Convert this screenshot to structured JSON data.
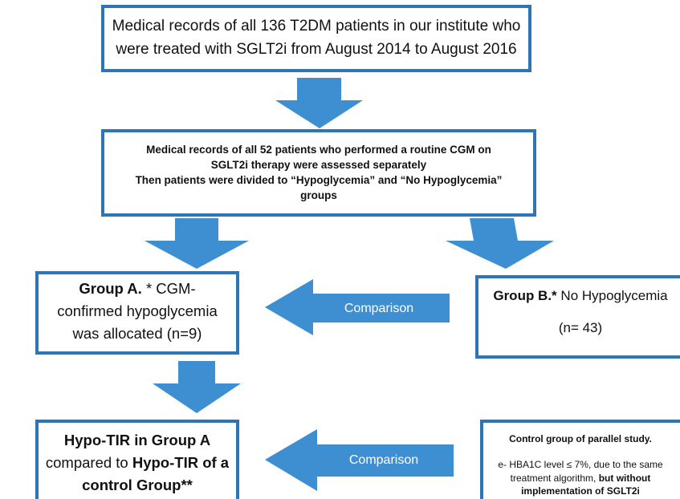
{
  "nodes": [
    {
      "lines": [
        [
          {
            "text": "Medical records of all 136 T2DM patients in our institute who",
            "bold": false
          }
        ],
        [
          {
            "text": "were treated with SGLT2i from August 2014 to August 2016",
            "bold": false
          }
        ]
      ]
    },
    {
      "lines": [
        [
          {
            "text": "Medical records of all 52 patients who performed a routine CGM on",
            "bold": true
          }
        ],
        [
          {
            "text": "SGLT2i therapy were assessed separately",
            "bold": true
          }
        ],
        [
          {
            "text": "Then patients were divided to “Hypoglycemia” and “No Hypoglycemia”",
            "bold": true
          }
        ],
        [
          {
            "text": "groups",
            "bold": true
          }
        ]
      ]
    },
    {
      "lines": [
        [
          {
            "text": "Group A.",
            "bold": true
          },
          {
            "text": " * CGM-",
            "bold": false
          }
        ],
        [
          {
            "text": "confirmed hypoglycemia",
            "bold": false
          }
        ],
        [
          {
            "text": "was allocated (n=9)",
            "bold": false
          }
        ]
      ]
    },
    {
      "lines": [
        [
          {
            "text": "Group B.*",
            "bold": true
          },
          {
            "text": " No Hypoglycemia",
            "bold": false
          }
        ],
        [
          {
            "text": "(n= 43)",
            "bold": false
          }
        ]
      ]
    },
    {
      "lines": [
        [
          {
            "text": "Hypo-TIR in Group A",
            "bold": true
          }
        ],
        [
          {
            "text": "compared to ",
            "bold": false
          },
          {
            "text": "Hypo-TIR of a",
            "bold": true
          }
        ],
        [
          {
            "text": "control Group**",
            "bold": true
          }
        ]
      ]
    },
    {
      "lines": [
        [
          {
            "text": "Control group of parallel study.",
            "bold": true
          }
        ],
        [
          {
            "text": "e- HBA1C level ≤ 7%, due to the same",
            "bold": false
          }
        ],
        [
          {
            "text": "treatment algorithm, ",
            "bold": false
          },
          {
            "text": "but without",
            "bold": true
          }
        ],
        [
          {
            "text": "implementation of SGLT2i",
            "bold": true
          }
        ]
      ]
    }
  ],
  "arrows": [
    {
      "label": "Comparison"
    },
    {
      "label": "Comparison"
    }
  ]
}
